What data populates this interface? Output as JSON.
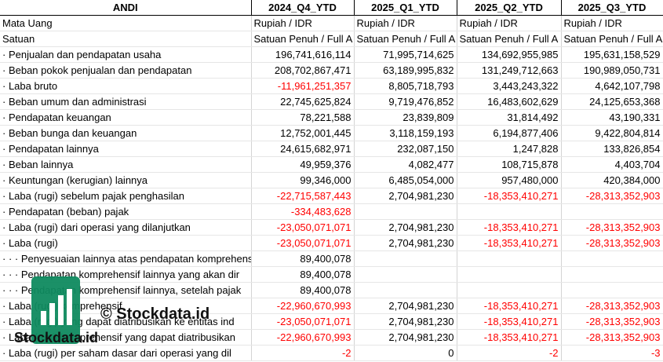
{
  "header": {
    "company": "ANDI",
    "periods": [
      "2024_Q4_YTD",
      "2025_Q1_YTD",
      "2025_Q2_YTD",
      "2025_Q3_YTD"
    ]
  },
  "currency_row": {
    "label": "Mata Uang",
    "values": [
      "Rupiah / IDR",
      "Rupiah / IDR",
      "Rupiah / IDR",
      "Rupiah / IDR"
    ]
  },
  "unit_row": {
    "label": "Satuan",
    "values": [
      "Satuan Penuh / Full A",
      "Satuan Penuh / Full A",
      "Satuan Penuh / Full A",
      "Satuan Penuh / Full A"
    ]
  },
  "rows": [
    {
      "label": "· Penjualan dan pendapatan usaha",
      "v": [
        "196,741,616,114",
        "71,995,714,625",
        "134,692,955,985",
        "195,631,158,529"
      ],
      "neg": [
        false,
        false,
        false,
        false
      ]
    },
    {
      "label": "· Beban pokok penjualan dan pendapatan",
      "v": [
        "208,702,867,471",
        "63,189,995,832",
        "131,249,712,663",
        "190,989,050,731"
      ],
      "neg": [
        false,
        false,
        false,
        false
      ]
    },
    {
      "label": "· Laba bruto",
      "v": [
        "-11,961,251,357",
        "8,805,718,793",
        "3,443,243,322",
        "4,642,107,798"
      ],
      "neg": [
        true,
        false,
        false,
        false
      ]
    },
    {
      "label": "· Beban umum dan administrasi",
      "v": [
        "22,745,625,824",
        "9,719,476,852",
        "16,483,602,629",
        "24,125,653,368"
      ],
      "neg": [
        false,
        false,
        false,
        false
      ]
    },
    {
      "label": "· Pendapatan keuangan",
      "v": [
        "78,221,588",
        "23,839,809",
        "31,814,492",
        "43,190,331"
      ],
      "neg": [
        false,
        false,
        false,
        false
      ]
    },
    {
      "label": "· Beban bunga dan keuangan",
      "v": [
        "12,752,001,445",
        "3,118,159,193",
        "6,194,877,406",
        "9,422,804,814"
      ],
      "neg": [
        false,
        false,
        false,
        false
      ]
    },
    {
      "label": "· Pendapatan lainnya",
      "v": [
        "24,615,682,971",
        "232,087,150",
        "1,247,828",
        "133,826,854"
      ],
      "neg": [
        false,
        false,
        false,
        false
      ]
    },
    {
      "label": "· Beban lainnya",
      "v": [
        "49,959,376",
        "4,082,477",
        "108,715,878",
        "4,403,704"
      ],
      "neg": [
        false,
        false,
        false,
        false
      ]
    },
    {
      "label": "· Keuntungan (kerugian) lainnya",
      "v": [
        "99,346,000",
        "6,485,054,000",
        "957,480,000",
        "420,384,000"
      ],
      "neg": [
        false,
        false,
        false,
        false
      ]
    },
    {
      "label": "· Laba (rugi) sebelum pajak penghasilan",
      "v": [
        "-22,715,587,443",
        "2,704,981,230",
        "-18,353,410,271",
        "-28,313,352,903"
      ],
      "neg": [
        true,
        false,
        true,
        true
      ]
    },
    {
      "label": "· Pendapatan (beban) pajak",
      "v": [
        "-334,483,628",
        "",
        "",
        ""
      ],
      "neg": [
        true,
        false,
        false,
        false
      ]
    },
    {
      "label": "· Laba (rugi) dari operasi yang dilanjutkan",
      "v": [
        "-23,050,071,071",
        "2,704,981,230",
        "-18,353,410,271",
        "-28,313,352,903"
      ],
      "neg": [
        true,
        false,
        true,
        true
      ]
    },
    {
      "label": "· Laba (rugi)",
      "v": [
        "-23,050,071,071",
        "2,704,981,230",
        "-18,353,410,271",
        "-28,313,352,903"
      ],
      "neg": [
        true,
        false,
        true,
        true
      ]
    },
    {
      "label": "· · · Penyesuaian lainnya atas pendapatan komprehensif",
      "v": [
        "89,400,078",
        "",
        "",
        ""
      ],
      "neg": [
        false,
        false,
        false,
        false
      ]
    },
    {
      "label": "· · · Pendapatan komprehensif lainnya yang akan dir",
      "v": [
        "89,400,078",
        "",
        "",
        ""
      ],
      "neg": [
        false,
        false,
        false,
        false
      ]
    },
    {
      "label": "· · · Pendapatan komprehensif lainnya, setelah pajak",
      "v": [
        "89,400,078",
        "",
        "",
        ""
      ],
      "neg": [
        false,
        false,
        false,
        false
      ]
    },
    {
      "label": "· Laba (rugi) komprehensif",
      "v": [
        "-22,960,670,993",
        "2,704,981,230",
        "-18,353,410,271",
        "-28,313,352,903"
      ],
      "neg": [
        true,
        false,
        true,
        true
      ]
    },
    {
      "label": "· Laba (rugi) yang dapat diatribusikan ke entitas ind",
      "v": [
        "-23,050,071,071",
        "2,704,981,230",
        "-18,353,410,271",
        "-28,313,352,903"
      ],
      "neg": [
        true,
        false,
        true,
        true
      ]
    },
    {
      "label": "· Laba (rugi) komprehensif yang dapat diatribusikan",
      "v": [
        "-22,960,670,993",
        "2,704,981,230",
        "-18,353,410,271",
        "-28,313,352,903"
      ],
      "neg": [
        true,
        false,
        true,
        true
      ]
    },
    {
      "label": "· Laba (rugi) per saham dasar dari operasi yang dil",
      "v": [
        "-2",
        "0",
        "-2",
        "-3"
      ],
      "neg": [
        true,
        false,
        true,
        true
      ]
    }
  ],
  "watermark": {
    "text_big": "© Stockdata.id",
    "text_small": "Stockdata.id"
  }
}
